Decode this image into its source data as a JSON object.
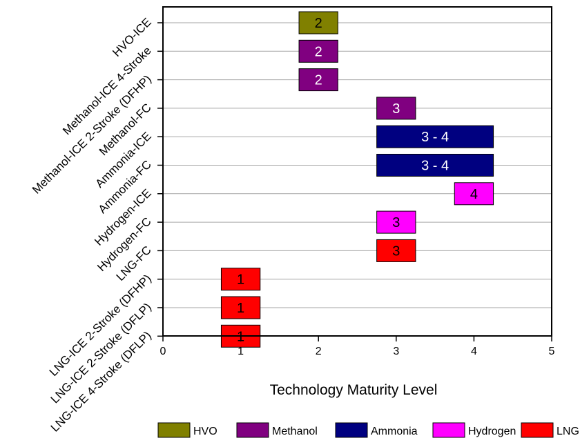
{
  "chart_data": {
    "type": "bar",
    "subtype": "floating-range-horizontal",
    "title": "",
    "xlabel": "Technology Maturity Level",
    "ylabel": "",
    "xlim": [
      0,
      5
    ],
    "xticks": [
      "0",
      "1",
      "2",
      "3",
      "4",
      "5"
    ],
    "grid": "horizontal",
    "legend_position": "bottom",
    "categories": [
      "HVO-ICE",
      "Methanol-ICE 4-Stroke",
      "Methanol-ICE 2-Stroke (DFHP)",
      "Methanol-FC",
      "Ammonia-ICE",
      "Ammonia-FC",
      "Hydrogen-ICE",
      "Hydrogen-FC",
      "LNG-FC",
      "LNG-ICE 2-Stroke (DFHP)",
      "LNG-ICE 2-Stroke (DFLP)",
      "LNG-ICE 4-Stroke (DFLP)"
    ],
    "bars": [
      {
        "category": "HVO-ICE",
        "fuel": "HVO",
        "start": 1.75,
        "end": 2.25,
        "label": "2"
      },
      {
        "category": "Methanol-ICE 4-Stroke",
        "fuel": "Methanol",
        "start": 1.75,
        "end": 2.25,
        "label": "2"
      },
      {
        "category": "Methanol-ICE 2-Stroke (DFHP)",
        "fuel": "Methanol",
        "start": 1.75,
        "end": 2.25,
        "label": "2"
      },
      {
        "category": "Methanol-FC",
        "fuel": "Methanol",
        "start": 2.75,
        "end": 3.25,
        "label": "3"
      },
      {
        "category": "Ammonia-ICE",
        "fuel": "Ammonia",
        "start": 2.75,
        "end": 4.25,
        "label": "3 - 4"
      },
      {
        "category": "Ammonia-FC",
        "fuel": "Ammonia",
        "start": 2.75,
        "end": 4.25,
        "label": "3 - 4"
      },
      {
        "category": "Hydrogen-ICE",
        "fuel": "Hydrogen",
        "start": 3.75,
        "end": 4.25,
        "label": "4"
      },
      {
        "category": "Hydrogen-FC",
        "fuel": "Hydrogen",
        "start": 2.75,
        "end": 3.25,
        "label": "3"
      },
      {
        "category": "LNG-FC",
        "fuel": "LNG",
        "start": 2.75,
        "end": 3.25,
        "label": "3"
      },
      {
        "category": "LNG-ICE 2-Stroke (DFHP)",
        "fuel": "LNG",
        "start": 0.75,
        "end": 1.25,
        "label": "1"
      },
      {
        "category": "LNG-ICE 2-Stroke (DFLP)",
        "fuel": "LNG",
        "start": 0.75,
        "end": 1.25,
        "label": "1"
      },
      {
        "category": "LNG-ICE 4-Stroke (DFLP)",
        "fuel": "LNG",
        "start": 0.75,
        "end": 1.25,
        "label": "1"
      }
    ],
    "legend": [
      {
        "name": "HVO",
        "color": "#808000",
        "text_color": "#000000"
      },
      {
        "name": "Methanol",
        "color": "#800080",
        "text_color": "#ffffff"
      },
      {
        "name": "Ammonia",
        "color": "#000080",
        "text_color": "#ffffff"
      },
      {
        "name": "Hydrogen",
        "color": "#ff00ff",
        "text_color": "#000000"
      },
      {
        "name": "LNG",
        "color": "#ff0000",
        "text_color": "#000000"
      }
    ]
  }
}
